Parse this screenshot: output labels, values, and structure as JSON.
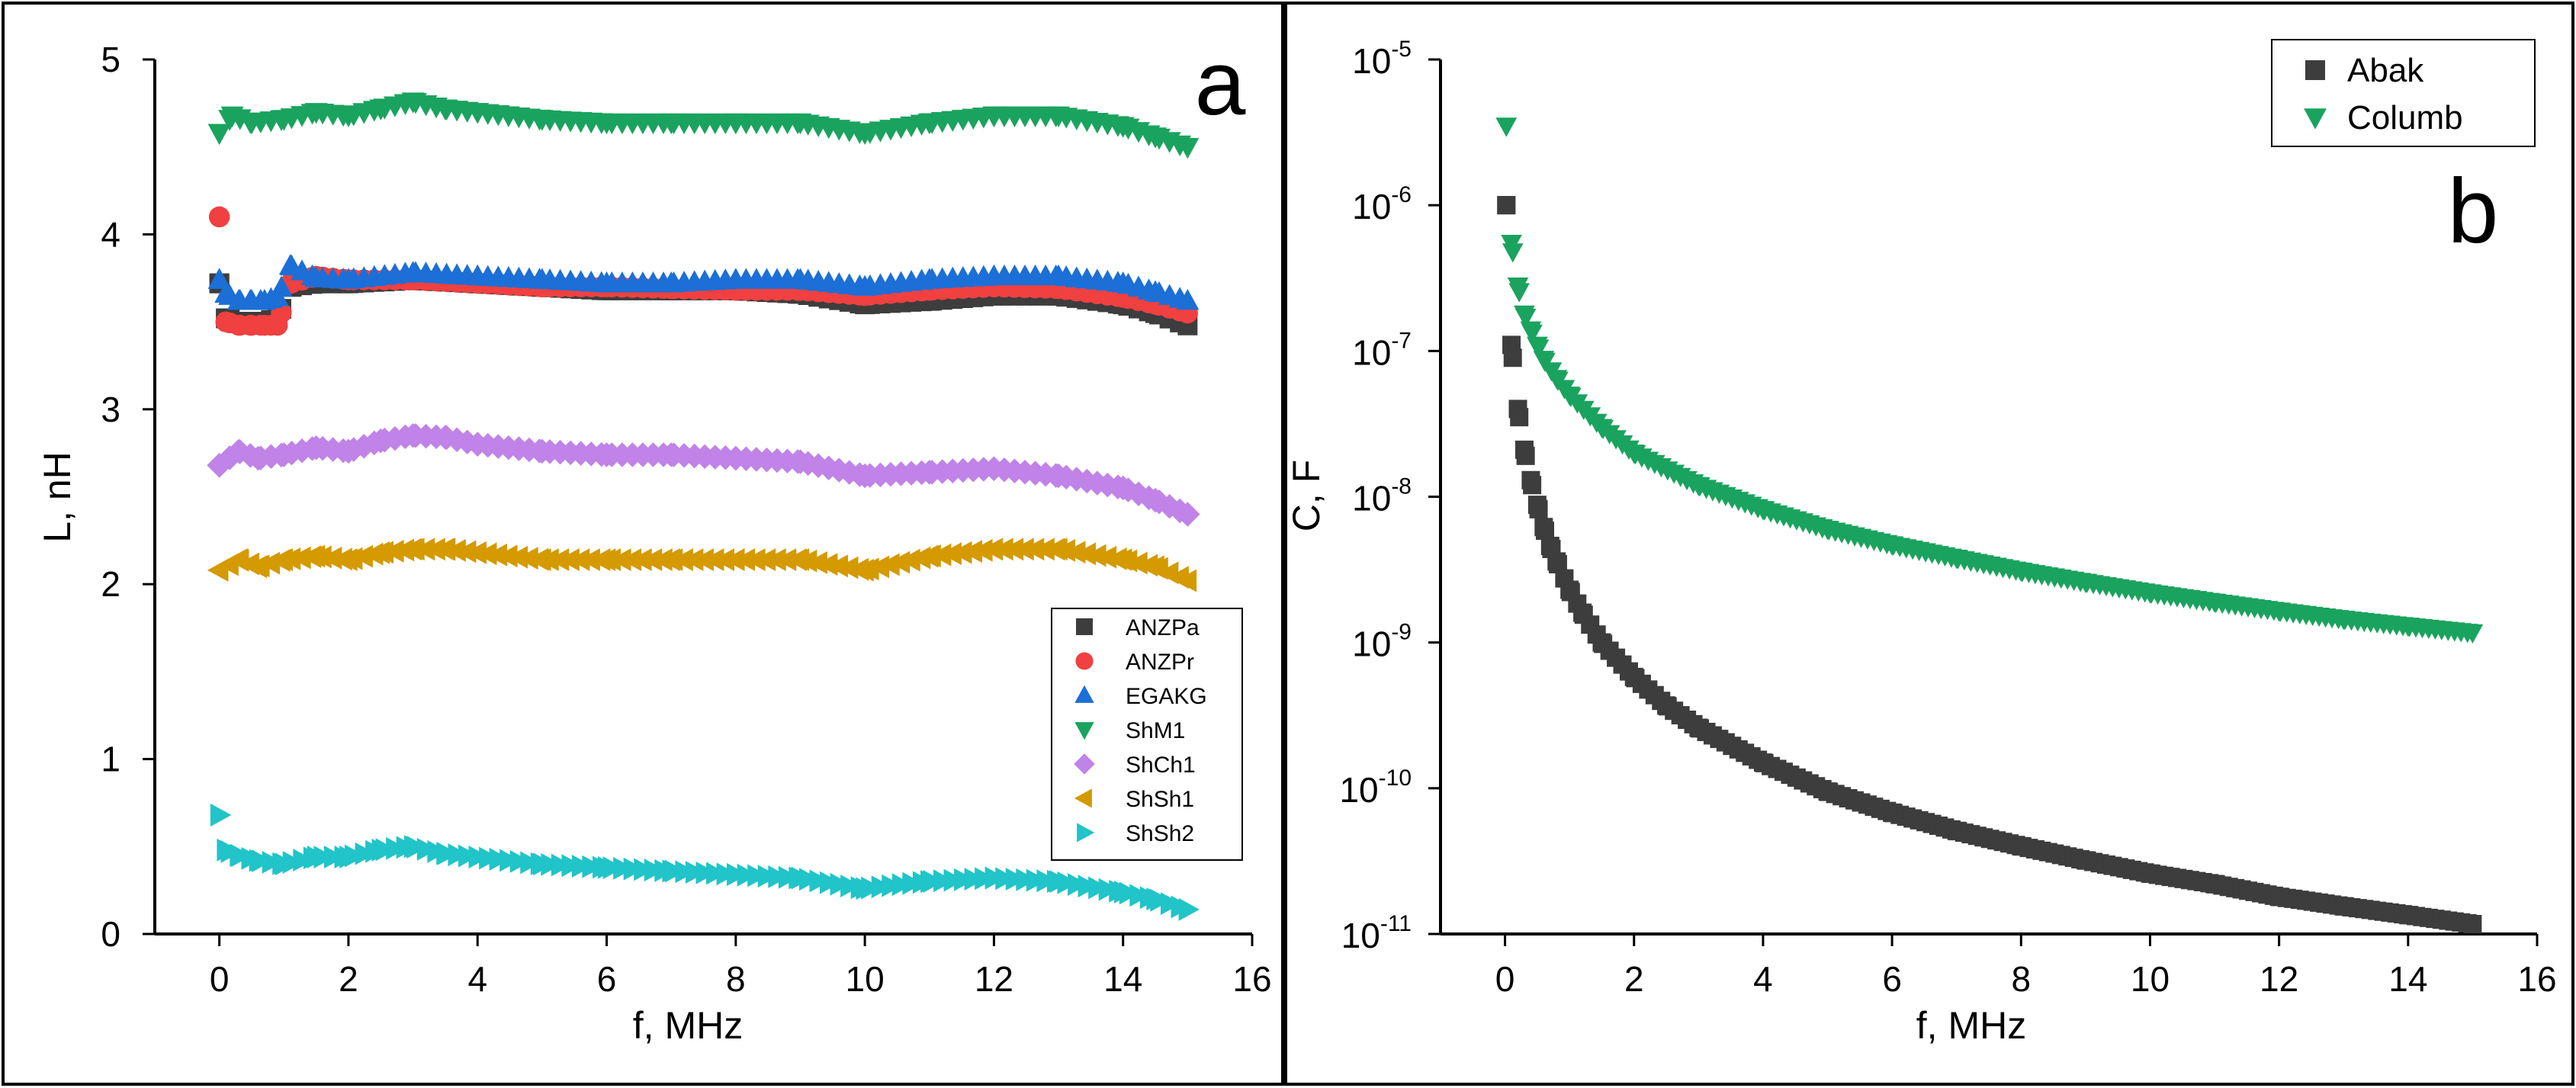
{
  "chart_data": [
    {
      "panel": "a",
      "type": "scatter",
      "xlabel": "f, MHz",
      "ylabel": "L, nH",
      "xlim": [
        -1,
        16
      ],
      "ylim": [
        0,
        5
      ],
      "xticks": [
        0,
        2,
        4,
        6,
        8,
        10,
        12,
        14,
        16
      ],
      "yticks": [
        0,
        1,
        2,
        3,
        4,
        5
      ],
      "legend_position": "bottom-right",
      "series": [
        {
          "name": "ANZPa",
          "marker": "square",
          "color": "#3d3d3d",
          "x": [
            0.0,
            0.1,
            0.3,
            0.5,
            0.7,
            0.9,
            1.1,
            1.5,
            2.0,
            3.0,
            4.0,
            5.0,
            6.0,
            7.0,
            8.0,
            9.0,
            10.0,
            11.0,
            12.0,
            13.0,
            14.0,
            14.5,
            15.0
          ],
          "y": [
            3.72,
            3.52,
            3.5,
            3.5,
            3.5,
            3.52,
            3.7,
            3.72,
            3.72,
            3.74,
            3.72,
            3.7,
            3.68,
            3.68,
            3.68,
            3.66,
            3.6,
            3.62,
            3.65,
            3.65,
            3.6,
            3.55,
            3.48
          ]
        },
        {
          "name": "ANZPr",
          "marker": "circle",
          "color": "#f04040",
          "x": [
            0.0,
            0.1,
            0.3,
            0.5,
            0.7,
            0.9,
            1.1,
            1.5,
            2.0,
            3.0,
            4.0,
            5.0,
            6.0,
            7.0,
            8.0,
            9.0,
            10.0,
            11.0,
            12.0,
            13.0,
            14.0,
            14.5,
            15.0
          ],
          "y": [
            4.1,
            3.5,
            3.48,
            3.48,
            3.48,
            3.48,
            3.72,
            3.76,
            3.74,
            3.74,
            3.72,
            3.7,
            3.7,
            3.69,
            3.68,
            3.68,
            3.65,
            3.68,
            3.7,
            3.69,
            3.64,
            3.6,
            3.55
          ]
        },
        {
          "name": "EGAKG",
          "marker": "triangle-up",
          "color": "#1c6fd6",
          "x": [
            0.0,
            0.1,
            0.3,
            0.5,
            0.7,
            0.9,
            1.1,
            1.5,
            2.0,
            3.0,
            4.0,
            5.0,
            6.0,
            7.0,
            8.0,
            9.0,
            10.0,
            11.0,
            12.0,
            13.0,
            14.0,
            14.5,
            15.0
          ],
          "y": [
            3.74,
            3.66,
            3.62,
            3.62,
            3.62,
            3.64,
            3.82,
            3.75,
            3.74,
            3.78,
            3.76,
            3.74,
            3.72,
            3.72,
            3.74,
            3.74,
            3.7,
            3.74,
            3.76,
            3.76,
            3.72,
            3.67,
            3.62
          ]
        },
        {
          "name": "ShM1",
          "marker": "triangle-down",
          "color": "#1aa35e",
          "x": [
            0.0,
            0.2,
            0.5,
            1.0,
            1.5,
            2.0,
            2.5,
            3.0,
            3.5,
            4.0,
            5.0,
            6.0,
            7.0,
            8.0,
            9.0,
            10.0,
            11.0,
            12.0,
            13.0,
            14.0,
            14.5,
            15.0
          ],
          "y": [
            4.58,
            4.68,
            4.64,
            4.66,
            4.7,
            4.68,
            4.72,
            4.76,
            4.72,
            4.7,
            4.66,
            4.64,
            4.64,
            4.64,
            4.64,
            4.58,
            4.64,
            4.68,
            4.68,
            4.62,
            4.56,
            4.5
          ]
        },
        {
          "name": "ShCh1",
          "marker": "diamond",
          "color": "#c083e8",
          "x": [
            0.0,
            0.3,
            0.6,
            1.0,
            1.5,
            2.0,
            2.5,
            3.0,
            3.5,
            4.0,
            5.0,
            6.0,
            7.0,
            8.0,
            9.0,
            10.0,
            11.0,
            12.0,
            13.0,
            14.0,
            14.5,
            15.0
          ],
          "y": [
            2.68,
            2.76,
            2.72,
            2.74,
            2.78,
            2.76,
            2.82,
            2.85,
            2.84,
            2.8,
            2.76,
            2.74,
            2.74,
            2.72,
            2.7,
            2.62,
            2.64,
            2.66,
            2.62,
            2.55,
            2.48,
            2.4
          ]
        },
        {
          "name": "ShSh1",
          "marker": "triangle-left",
          "color": "#d49a00",
          "x": [
            0.0,
            0.3,
            0.6,
            1.0,
            1.5,
            2.0,
            2.5,
            3.0,
            3.5,
            4.0,
            5.0,
            6.0,
            7.0,
            8.0,
            9.0,
            10.0,
            11.0,
            12.0,
            13.0,
            14.0,
            14.5,
            15.0
          ],
          "y": [
            2.08,
            2.14,
            2.1,
            2.14,
            2.16,
            2.14,
            2.18,
            2.2,
            2.2,
            2.18,
            2.14,
            2.14,
            2.14,
            2.14,
            2.14,
            2.08,
            2.16,
            2.2,
            2.2,
            2.14,
            2.1,
            2.02
          ]
        },
        {
          "name": "ShSh2",
          "marker": "triangle-right",
          "color": "#21c4c8",
          "x": [
            0.0,
            0.1,
            0.3,
            0.6,
            1.0,
            1.5,
            2.0,
            2.5,
            3.0,
            3.5,
            4.0,
            5.0,
            6.0,
            7.0,
            8.0,
            9.0,
            10.0,
            11.0,
            12.0,
            13.0,
            14.0,
            14.5,
            15.0
          ],
          "y": [
            0.68,
            0.48,
            0.45,
            0.42,
            0.4,
            0.44,
            0.44,
            0.48,
            0.5,
            0.46,
            0.44,
            0.4,
            0.38,
            0.36,
            0.34,
            0.32,
            0.26,
            0.3,
            0.32,
            0.3,
            0.24,
            0.2,
            0.14
          ]
        }
      ]
    },
    {
      "panel": "b",
      "type": "scatter",
      "xlabel": "f, MHz",
      "ylabel": "C, F",
      "xlim": [
        -1,
        16
      ],
      "ylim": [
        1e-11,
        1e-05
      ],
      "yscale": "log",
      "xticks": [
        0,
        2,
        4,
        6,
        8,
        10,
        12,
        14,
        16
      ],
      "yticks": [
        {
          "value": 1e-05,
          "base": "10",
          "exp": "-5"
        },
        {
          "value": 1e-06,
          "base": "10",
          "exp": "-6"
        },
        {
          "value": 1e-07,
          "base": "10",
          "exp": "-7"
        },
        {
          "value": 1e-08,
          "base": "10",
          "exp": "-8"
        },
        {
          "value": 1e-09,
          "base": "10",
          "exp": "-9"
        },
        {
          "value": 1e-10,
          "base": "10",
          "exp": "-10"
        },
        {
          "value": 1e-11,
          "base": "10",
          "exp": "-11"
        }
      ],
      "legend_position": "top-right",
      "series": [
        {
          "name": "Abak",
          "marker": "square",
          "color": "#3d3d3d",
          "x": [
            0.02,
            0.1,
            0.2,
            0.3,
            0.4,
            0.5,
            0.6,
            0.7,
            0.8,
            1.0,
            1.2,
            1.5,
            2.0,
            2.5,
            3.0,
            4.0,
            5.0,
            6.0,
            7.0,
            8.0,
            9.0,
            10.0,
            11.0,
            12.0,
            13.0,
            14.0,
            15.0
          ],
          "y": [
            1e-06,
            1.1e-07,
            4e-08,
            2.1e-08,
            1.3e-08,
            8.8e-09,
            6.2e-09,
            4.6e-09,
            3.6e-09,
            2.3e-09,
            1.6e-09,
            1e-09,
            5.8e-10,
            3.7e-10,
            2.6e-10,
            1.5e-10,
            9.5e-11,
            6.8e-11,
            5.1e-11,
            4e-11,
            3.2e-11,
            2.6e-11,
            2.2e-11,
            1.8e-11,
            1.55e-11,
            1.35e-11,
            1.17e-11
          ]
        },
        {
          "name": "Columb",
          "marker": "triangle-down",
          "color": "#1aa35e",
          "x": [
            0.02,
            0.1,
            0.2,
            0.3,
            0.4,
            0.5,
            0.6,
            0.8,
            1.0,
            1.5,
            2.0,
            3.0,
            4.0,
            5.0,
            6.0,
            7.0,
            8.0,
            9.0,
            10.0,
            11.0,
            12.0,
            13.0,
            14.0,
            15.0
          ],
          "y": [
            3.5e-06,
            5.5e-07,
            2.8e-07,
            1.8e-07,
            1.4e-07,
            1.1e-07,
            8.8e-08,
            6.5e-08,
            5e-08,
            3e-08,
            2e-08,
            1.2e-08,
            8.2e-09,
            6e-09,
            4.7e-09,
            3.8e-09,
            3.1e-09,
            2.6e-09,
            2.2e-09,
            1.9e-09,
            1.65e-09,
            1.45e-09,
            1.3e-09,
            1.17e-09
          ]
        }
      ]
    }
  ],
  "panel_labels": {
    "a": "a",
    "b": "b"
  }
}
